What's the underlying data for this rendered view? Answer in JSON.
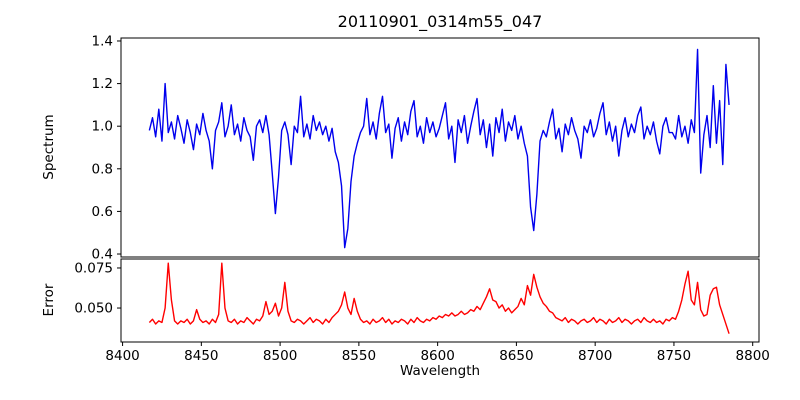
{
  "figure": {
    "title": "20110901_0314m55_047",
    "xlabel": "Wavelength",
    "top_ylabel": "Spectrum",
    "bottom_ylabel": "Error",
    "colors": {
      "spectrum_line": "#0000ee",
      "error_line": "#ff0000",
      "axis": "#000000",
      "background": "#ffffff",
      "text": "#000000"
    }
  },
  "chart_data": [
    {
      "type": "line",
      "title": "20110901_0314m55_047",
      "ylabel": "Spectrum",
      "series_name": "spectrum",
      "color": "#0000ee",
      "x_start": 8417,
      "x_step": 2,
      "xlim": [
        8399,
        8804
      ],
      "ylim": [
        0.386,
        1.414
      ],
      "grid": false,
      "legend": "none",
      "yticks": [
        0.4,
        0.6,
        0.8,
        1.0,
        1.2,
        1.4
      ],
      "yticklabels": [
        "0.4",
        "0.6",
        "0.8",
        "1.0",
        "1.2",
        "1.4"
      ],
      "xticks": [],
      "xticklabels": [],
      "values": [
        0.98,
        1.04,
        0.95,
        1.08,
        0.93,
        1.2,
        0.97,
        1.02,
        0.94,
        1.05,
        0.99,
        0.92,
        1.03,
        0.97,
        0.89,
        1.01,
        0.96,
        1.06,
        0.98,
        0.93,
        0.8,
        0.98,
        1.02,
        1.11,
        0.95,
        1.0,
        1.1,
        0.96,
        1.01,
        0.93,
        1.04,
        0.98,
        0.95,
        0.84,
        1.0,
        1.03,
        0.97,
        1.05,
        0.96,
        0.78,
        0.59,
        0.76,
        0.98,
        1.02,
        0.96,
        0.82,
        1.0,
        0.97,
        1.14,
        0.95,
        1.01,
        0.94,
        1.05,
        0.98,
        1.02,
        0.96,
        1.0,
        0.93,
        0.99,
        0.88,
        0.83,
        0.72,
        0.43,
        0.52,
        0.74,
        0.86,
        0.92,
        0.97,
        1.0,
        1.13,
        0.96,
        1.02,
        0.94,
        1.06,
        1.14,
        0.97,
        1.01,
        0.85,
        0.99,
        1.04,
        0.93,
        1.02,
        0.96,
        1.07,
        1.12,
        0.95,
        1.0,
        0.92,
        1.04,
        0.97,
        1.02,
        0.95,
        0.99,
        1.05,
        1.11,
        0.94,
        1.0,
        0.83,
        1.03,
        0.97,
        1.05,
        0.92,
        1.0,
        1.07,
        1.13,
        0.96,
        1.03,
        0.9,
        1.01,
        0.86,
        1.04,
        0.97,
        1.08,
        0.93,
        1.02,
        0.98,
        1.05,
        0.94,
        1.0,
        0.92,
        0.86,
        0.62,
        0.51,
        0.68,
        0.93,
        0.98,
        0.95,
        1.02,
        1.08,
        0.94,
        0.99,
        0.88,
        1.01,
        0.96,
        1.04,
        0.98,
        0.94,
        0.85,
        1.0,
        0.97,
        1.03,
        0.95,
        0.99,
        1.06,
        1.11,
        0.96,
        1.02,
        0.93,
        1.0,
        0.86,
        0.98,
        1.04,
        0.95,
        1.01,
        0.97,
        1.05,
        1.09,
        0.94,
        1.0,
        0.96,
        1.02,
        0.93,
        0.87,
        1.0,
        1.04,
        0.97,
        0.97,
        0.94,
        1.05,
        0.95,
        1.0,
        0.92,
        1.03,
        0.97,
        1.36,
        0.78,
        0.96,
        1.05,
        0.9,
        1.19,
        0.92,
        1.12,
        0.82,
        1.29,
        1.1
      ]
    },
    {
      "type": "line",
      "xlabel": "Wavelength",
      "ylabel": "Error",
      "series_name": "error",
      "color": "#ff0000",
      "x_start": 8417,
      "x_step": 2,
      "xlim": [
        8399,
        8804
      ],
      "ylim": [
        0.0288,
        0.0806
      ],
      "grid": false,
      "legend": "none",
      "yticks": [
        0.05,
        0.075
      ],
      "yticklabels": [
        "0.050",
        "0.075"
      ],
      "xticks": [
        8400,
        8450,
        8500,
        8550,
        8600,
        8650,
        8700,
        8750,
        8800
      ],
      "xticklabels": [
        "8400",
        "8450",
        "8500",
        "8550",
        "8600",
        "8650",
        "8700",
        "8750",
        "8800"
      ],
      "values": [
        0.041,
        0.043,
        0.04,
        0.042,
        0.041,
        0.05,
        0.078,
        0.055,
        0.042,
        0.04,
        0.042,
        0.041,
        0.043,
        0.04,
        0.042,
        0.049,
        0.043,
        0.041,
        0.042,
        0.04,
        0.043,
        0.041,
        0.046,
        0.078,
        0.05,
        0.042,
        0.041,
        0.043,
        0.04,
        0.042,
        0.041,
        0.044,
        0.042,
        0.04,
        0.043,
        0.042,
        0.045,
        0.054,
        0.046,
        0.048,
        0.053,
        0.045,
        0.05,
        0.066,
        0.048,
        0.042,
        0.041,
        0.043,
        0.042,
        0.04,
        0.042,
        0.044,
        0.041,
        0.043,
        0.042,
        0.04,
        0.043,
        0.041,
        0.044,
        0.046,
        0.048,
        0.052,
        0.06,
        0.05,
        0.046,
        0.056,
        0.048,
        0.043,
        0.041,
        0.042,
        0.04,
        0.043,
        0.041,
        0.042,
        0.044,
        0.041,
        0.043,
        0.04,
        0.042,
        0.041,
        0.043,
        0.042,
        0.04,
        0.043,
        0.041,
        0.044,
        0.042,
        0.041,
        0.043,
        0.042,
        0.044,
        0.043,
        0.045,
        0.044,
        0.046,
        0.045,
        0.047,
        0.045,
        0.046,
        0.048,
        0.046,
        0.047,
        0.049,
        0.048,
        0.051,
        0.049,
        0.053,
        0.057,
        0.062,
        0.055,
        0.054,
        0.05,
        0.052,
        0.048,
        0.05,
        0.047,
        0.049,
        0.051,
        0.056,
        0.052,
        0.064,
        0.058,
        0.071,
        0.063,
        0.057,
        0.053,
        0.051,
        0.048,
        0.047,
        0.044,
        0.043,
        0.042,
        0.044,
        0.041,
        0.043,
        0.042,
        0.04,
        0.042,
        0.043,
        0.041,
        0.042,
        0.044,
        0.041,
        0.043,
        0.042,
        0.04,
        0.043,
        0.041,
        0.042,
        0.044,
        0.041,
        0.043,
        0.042,
        0.04,
        0.042,
        0.043,
        0.041,
        0.044,
        0.042,
        0.041,
        0.043,
        0.041,
        0.042,
        0.04,
        0.043,
        0.042,
        0.044,
        0.043,
        0.048,
        0.055,
        0.065,
        0.073,
        0.055,
        0.052,
        0.066,
        0.049,
        0.045,
        0.046,
        0.058,
        0.062,
        0.063,
        0.052,
        0.046,
        0.04,
        0.034
      ]
    }
  ]
}
